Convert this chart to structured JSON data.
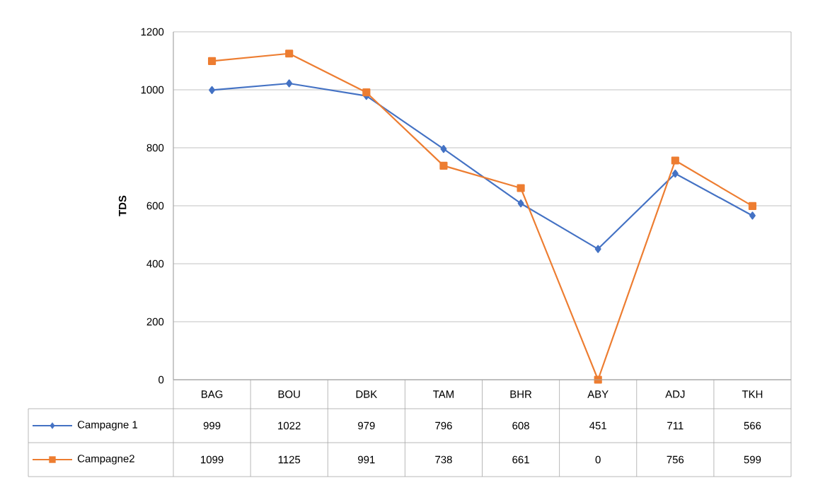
{
  "chart_data": {
    "type": "line",
    "ylabel": "TDS",
    "categories": [
      "BAG",
      "BOU",
      "DBK",
      "TAM",
      "BHR",
      "ABY",
      "ADJ",
      "TKH"
    ],
    "series": [
      {
        "name": "Campagne 1",
        "color": "#4472c4",
        "marker": "diamond",
        "values": [
          999,
          1022,
          979,
          796,
          608,
          451,
          711,
          566
        ]
      },
      {
        "name": "Campagne2",
        "color": "#ed7d31",
        "marker": "square",
        "values": [
          1099,
          1125,
          991,
          738,
          661,
          0,
          756,
          599
        ]
      }
    ],
    "ylim": [
      0,
      1200
    ],
    "yticks": [
      0,
      200,
      400,
      600,
      800,
      1000,
      1200
    ],
    "grid": "y",
    "data_labels": true,
    "legend": "bottom",
    "line_style": "solid"
  }
}
